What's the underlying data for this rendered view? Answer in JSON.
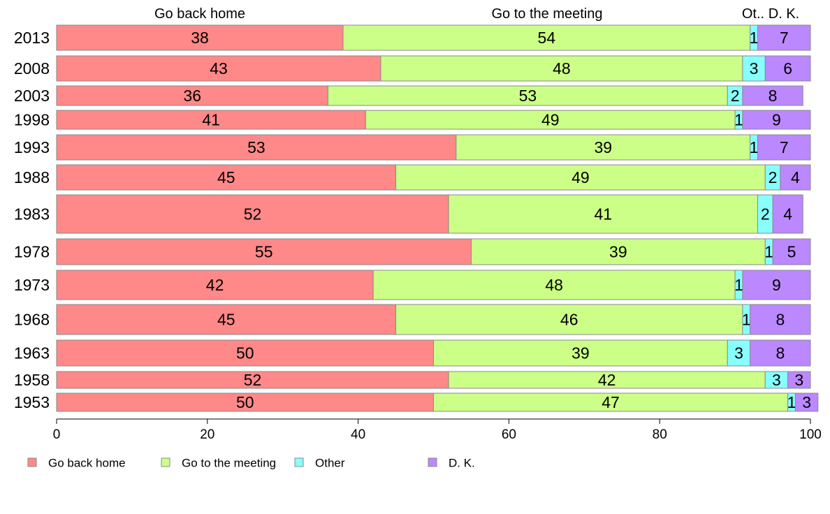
{
  "chart_data": {
    "type": "bar",
    "orientation": "horizontal",
    "stacked": true,
    "categories": [
      "2013",
      "2008",
      "2003",
      "1998",
      "1993",
      "1988",
      "1983",
      "1978",
      "1973",
      "1968",
      "1963",
      "1958",
      "1953"
    ],
    "series": [
      {
        "name": "Go back home",
        "color": "#ff8888",
        "values": [
          38,
          43,
          36,
          41,
          53,
          45,
          52,
          55,
          42,
          45,
          50,
          52,
          50
        ]
      },
      {
        "name": "Go to the meeting",
        "color": "#ccff88",
        "values": [
          54,
          48,
          53,
          49,
          39,
          49,
          41,
          39,
          48,
          46,
          39,
          42,
          47
        ]
      },
      {
        "name": "Other",
        "color": "#88ffff",
        "values": [
          1,
          3,
          2,
          1,
          1,
          2,
          2,
          1,
          1,
          1,
          3,
          3,
          1
        ]
      },
      {
        "name": "D. K.",
        "color": "#bb88ff",
        "values": [
          7,
          6,
          8,
          9,
          7,
          4,
          4,
          5,
          9,
          8,
          8,
          3,
          3
        ]
      }
    ],
    "column_headers": [
      "Go back home",
      "Go to the meeting",
      "Ot..",
      "D. K."
    ],
    "xlim": [
      0,
      100
    ],
    "xticks": [
      "0",
      "20",
      "40",
      "60",
      "80",
      "100"
    ],
    "legend_position": "bottom-left",
    "grid": false
  }
}
